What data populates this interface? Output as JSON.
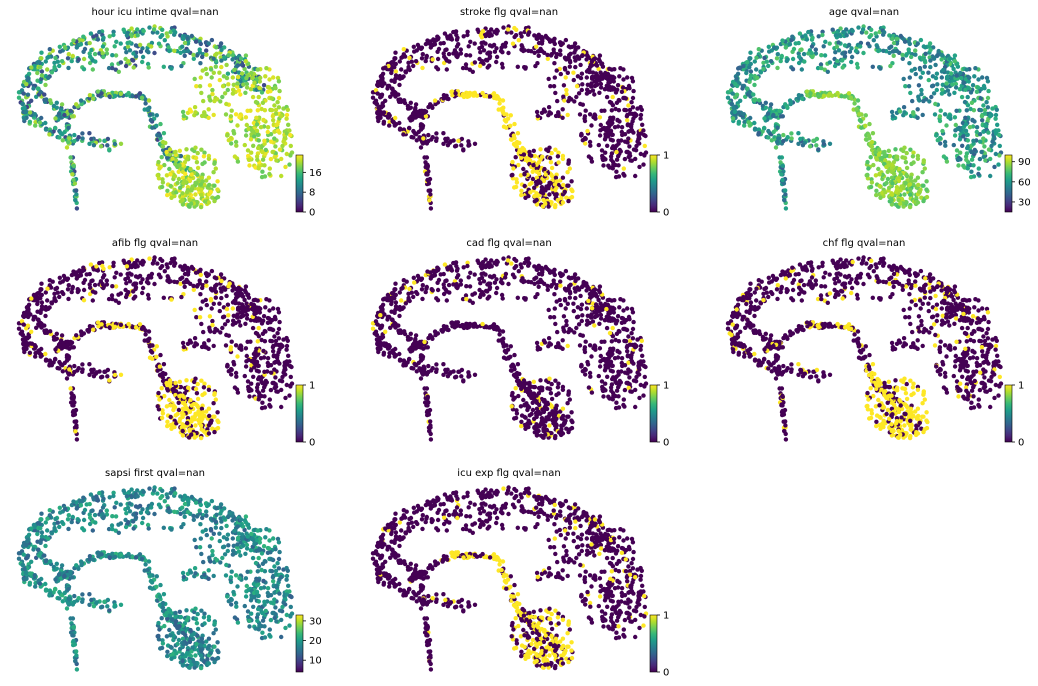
{
  "chart_data": [
    {
      "type": "scatter",
      "title": "hour icu intime qval=nan",
      "colorbar": {
        "ticks": [
          0,
          8,
          16
        ],
        "vmin": 0,
        "vmax": 23
      },
      "palette": "continuous",
      "yellow_region": "east"
    },
    {
      "type": "scatter",
      "title": "stroke flg qval=nan",
      "colorbar": {
        "ticks": [
          0,
          1
        ],
        "vmin": 0,
        "vmax": 1
      },
      "palette": "binary",
      "yellow_fraction": 0.22,
      "yellow_region": "leg"
    },
    {
      "type": "scatter",
      "title": "age qval=nan",
      "colorbar": {
        "ticks": [
          30,
          60,
          90
        ],
        "vmin": 15,
        "vmax": 100
      },
      "palette": "continuous",
      "yellow_region": "south"
    },
    {
      "type": "scatter",
      "title": "afib flg qval=nan",
      "colorbar": {
        "ticks": [
          0,
          1
        ],
        "vmin": 0,
        "vmax": 1
      },
      "palette": "binary",
      "yellow_fraction": 0.22,
      "yellow_region": "south"
    },
    {
      "type": "scatter",
      "title": "cad flg qval=nan",
      "colorbar": {
        "ticks": [
          0,
          1
        ],
        "vmin": 0,
        "vmax": 1
      },
      "palette": "binary",
      "yellow_fraction": 0.12,
      "yellow_region": "none"
    },
    {
      "type": "scatter",
      "title": "chf flg qval=nan",
      "colorbar": {
        "ticks": [
          0,
          1
        ],
        "vmin": 0,
        "vmax": 1
      },
      "palette": "binary",
      "yellow_fraction": 0.2,
      "yellow_region": "south"
    },
    {
      "type": "scatter",
      "title": "sapsi first qval=nan",
      "colorbar": {
        "ticks": [
          10,
          20,
          30
        ],
        "vmin": 4,
        "vmax": 33
      },
      "palette": "continuous",
      "yellow_region": "none"
    },
    {
      "type": "scatter",
      "title": "icu exp flg qval=nan",
      "colorbar": {
        "ticks": [
          0,
          1
        ],
        "vmin": 0,
        "vmax": 1
      },
      "palette": "binary",
      "yellow_fraction": 0.18,
      "yellow_region": "leg"
    }
  ]
}
